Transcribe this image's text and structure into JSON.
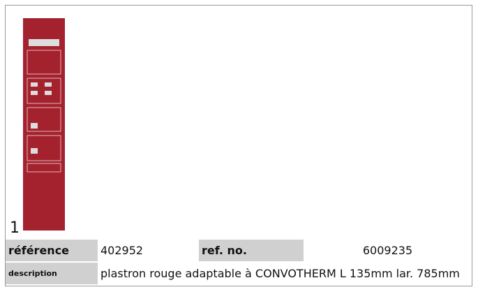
{
  "image": {
    "label": "1"
  },
  "table": {
    "rows": [
      [
        "référence",
        "402952",
        "ref. no.",
        "6009235"
      ],
      [
        "description",
        "plastron  rouge adaptable à CONVOTHERM L 135mm lar. 785mm"
      ]
    ]
  }
}
